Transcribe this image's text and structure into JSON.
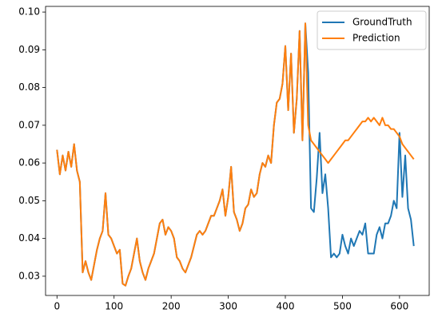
{
  "chart_data": {
    "type": "line",
    "x": [
      0,
      5,
      10,
      15,
      20,
      25,
      30,
      35,
      40,
      45,
      50,
      55,
      60,
      65,
      70,
      75,
      80,
      85,
      90,
      95,
      100,
      105,
      110,
      115,
      120,
      125,
      130,
      135,
      140,
      145,
      150,
      155,
      160,
      165,
      170,
      175,
      180,
      185,
      190,
      195,
      200,
      205,
      210,
      215,
      220,
      225,
      230,
      235,
      240,
      245,
      250,
      255,
      260,
      265,
      270,
      275,
      280,
      285,
      290,
      295,
      300,
      305,
      310,
      315,
      320,
      325,
      330,
      335,
      340,
      345,
      350,
      355,
      360,
      365,
      370,
      375,
      380,
      385,
      390,
      395,
      400,
      405,
      410,
      415,
      420,
      425,
      430,
      435,
      440,
      445,
      450,
      455,
      460,
      465,
      470,
      475,
      480,
      485,
      490,
      495,
      500,
      505,
      510,
      515,
      520,
      525,
      530,
      535,
      540,
      545,
      550,
      555,
      560,
      565,
      570,
      575,
      580,
      585,
      590,
      595,
      600,
      605,
      610,
      615,
      620,
      625
    ],
    "series": [
      {
        "name": "GroundTruth",
        "color": "#1f77b4",
        "values": [
          0.0635,
          0.057,
          0.062,
          0.058,
          0.063,
          0.059,
          0.065,
          0.058,
          0.055,
          0.031,
          0.034,
          0.031,
          0.029,
          0.033,
          0.037,
          0.04,
          0.042,
          0.052,
          0.041,
          0.04,
          0.038,
          0.036,
          0.037,
          0.028,
          0.0275,
          0.03,
          0.032,
          0.036,
          0.04,
          0.034,
          0.031,
          0.029,
          0.032,
          0.034,
          0.036,
          0.04,
          0.044,
          0.045,
          0.041,
          0.043,
          0.042,
          0.04,
          0.035,
          0.034,
          0.032,
          0.031,
          0.033,
          0.035,
          0.038,
          0.041,
          0.042,
          0.041,
          0.042,
          0.044,
          0.046,
          0.046,
          0.048,
          0.05,
          0.053,
          0.046,
          0.051,
          0.059,
          0.047,
          0.045,
          0.042,
          0.044,
          0.048,
          0.049,
          0.053,
          0.051,
          0.052,
          0.057,
          0.06,
          0.059,
          0.062,
          0.06,
          0.07,
          0.076,
          0.077,
          0.081,
          0.091,
          0.074,
          0.089,
          0.068,
          0.077,
          0.095,
          0.066,
          0.097,
          0.084,
          0.048,
          0.047,
          0.056,
          0.068,
          0.052,
          0.057,
          0.048,
          0.035,
          0.036,
          0.035,
          0.036,
          0.041,
          0.038,
          0.036,
          0.04,
          0.038,
          0.04,
          0.042,
          0.041,
          0.044,
          0.036,
          0.036,
          0.036,
          0.041,
          0.043,
          0.04,
          0.044,
          0.044,
          0.046,
          0.05,
          0.048,
          0.068,
          0.051,
          0.062,
          0.048,
          0.045,
          0.038
        ]
      },
      {
        "name": "Prediction",
        "color": "#ff7f0e",
        "values": [
          0.0635,
          0.057,
          0.062,
          0.058,
          0.063,
          0.059,
          0.065,
          0.058,
          0.055,
          0.031,
          0.034,
          0.031,
          0.029,
          0.033,
          0.037,
          0.04,
          0.042,
          0.052,
          0.041,
          0.04,
          0.038,
          0.036,
          0.037,
          0.028,
          0.0275,
          0.03,
          0.032,
          0.036,
          0.04,
          0.034,
          0.031,
          0.029,
          0.032,
          0.034,
          0.036,
          0.04,
          0.044,
          0.045,
          0.041,
          0.043,
          0.042,
          0.04,
          0.035,
          0.034,
          0.032,
          0.031,
          0.033,
          0.035,
          0.038,
          0.041,
          0.042,
          0.041,
          0.042,
          0.044,
          0.046,
          0.046,
          0.048,
          0.05,
          0.053,
          0.046,
          0.051,
          0.059,
          0.047,
          0.045,
          0.042,
          0.044,
          0.048,
          0.049,
          0.053,
          0.051,
          0.052,
          0.057,
          0.06,
          0.059,
          0.062,
          0.06,
          0.07,
          0.076,
          0.077,
          0.081,
          0.091,
          0.074,
          0.089,
          0.068,
          0.077,
          0.095,
          0.066,
          0.097,
          0.07,
          0.066,
          0.065,
          0.064,
          0.063,
          0.062,
          0.061,
          0.06,
          0.061,
          0.062,
          0.063,
          0.064,
          0.065,
          0.066,
          0.066,
          0.067,
          0.068,
          0.069,
          0.07,
          0.071,
          0.071,
          0.072,
          0.071,
          0.072,
          0.071,
          0.07,
          0.072,
          0.07,
          0.07,
          0.069,
          0.069,
          0.068,
          0.067,
          0.065,
          0.064,
          0.063,
          0.062,
          0.061
        ]
      }
    ],
    "xlim": [
      -20,
      652
    ],
    "ylim": [
      0.0249,
      0.1015
    ],
    "xticks": [
      0,
      100,
      200,
      300,
      400,
      500,
      600
    ],
    "yticks": [
      0.03,
      0.04,
      0.05,
      0.06,
      0.07,
      0.08,
      0.09,
      {
        "value": 0.1,
        "label": "0.10"
      }
    ],
    "legend": "upper right",
    "grid": false
  }
}
